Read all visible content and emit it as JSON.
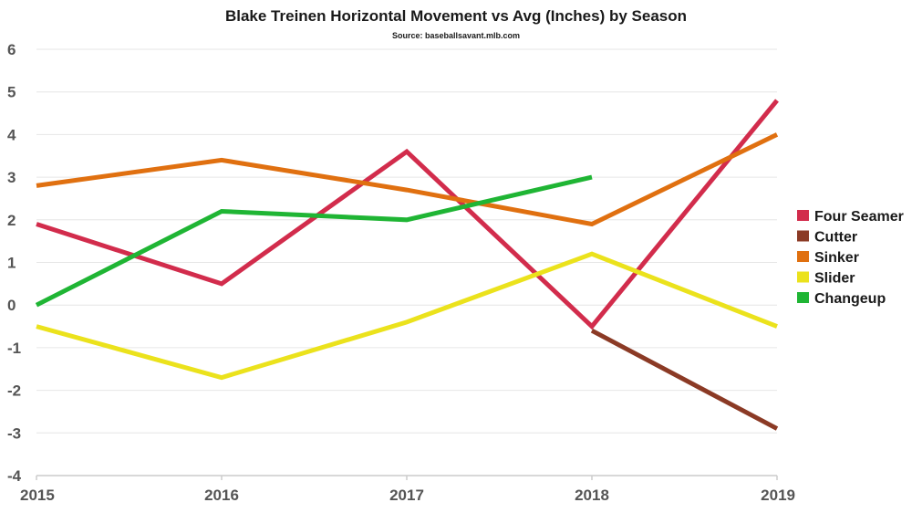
{
  "chart_data": {
    "type": "line",
    "title": "Blake Treinen Horizontal Movement vs Avg (Inches) by Season",
    "subtitle": "Source: baseballsavant.mlb.com",
    "xlabel": "",
    "ylabel": "",
    "categories": [
      "2015",
      "2016",
      "2017",
      "2018",
      "2019"
    ],
    "ylim": [
      -4,
      6
    ],
    "yticks": [
      6,
      5,
      4,
      3,
      2,
      1,
      0,
      -1,
      -2,
      -3,
      -4
    ],
    "grid": true,
    "legend_position": "right",
    "series": [
      {
        "name": "Four Seamer",
        "color": "#d22c4c",
        "values": [
          1.9,
          0.5,
          3.6,
          -0.5,
          4.8
        ]
      },
      {
        "name": "Cutter",
        "color": "#8b3a25",
        "values": [
          null,
          null,
          null,
          -0.6,
          -2.9
        ]
      },
      {
        "name": "Sinker",
        "color": "#e07010",
        "values": [
          2.8,
          3.4,
          2.7,
          1.9,
          4.0
        ]
      },
      {
        "name": "Slider",
        "color": "#ebe21c",
        "values": [
          -0.5,
          -1.7,
          -0.4,
          1.2,
          -0.5
        ]
      },
      {
        "name": "Changeup",
        "color": "#1fb534",
        "values": [
          0.0,
          2.2,
          2.0,
          3.0,
          null
        ]
      }
    ]
  }
}
